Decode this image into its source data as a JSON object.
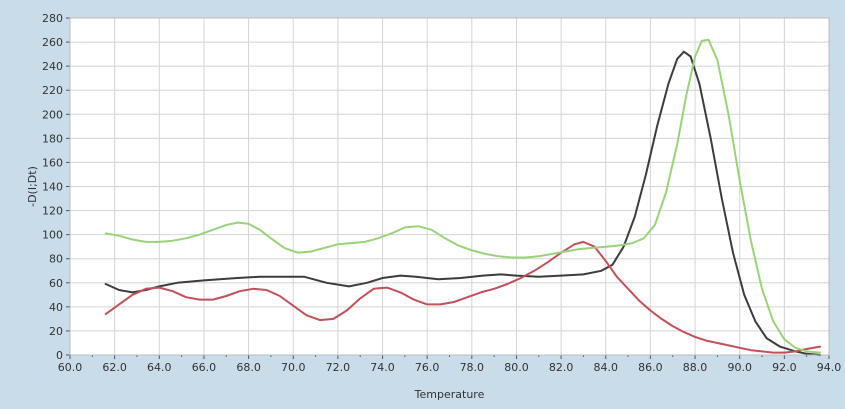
{
  "chart_data": {
    "type": "line",
    "xlabel": "Temperature",
    "ylabel": "-D(I;Dt)",
    "xlim": [
      60.0,
      94.0
    ],
    "ylim": [
      0,
      280
    ],
    "x_ticks": [
      "60.0",
      "62.0",
      "64.0",
      "66.0",
      "68.0",
      "70.0",
      "72.0",
      "74.0",
      "76.0",
      "78.0",
      "80.0",
      "82.0",
      "84.0",
      "86.0",
      "88.0",
      "90.0",
      "92.0",
      "94.0"
    ],
    "y_ticks": [
      "0",
      "20",
      "40",
      "60",
      "80",
      "100",
      "120",
      "140",
      "160",
      "180",
      "200",
      "220",
      "240",
      "260",
      "280"
    ],
    "grid": true,
    "colors": {
      "background": "#c9dcea",
      "plot_area": "#ffffff",
      "grid": "#d4d4d4",
      "axis": "#555555"
    },
    "series": [
      {
        "color": "#3c3c3c",
        "points": [
          [
            61.6,
            59
          ],
          [
            62.2,
            54
          ],
          [
            62.8,
            52
          ],
          [
            63.4,
            54
          ],
          [
            64.0,
            57
          ],
          [
            64.8,
            60
          ],
          [
            66.0,
            62
          ],
          [
            67.5,
            64
          ],
          [
            68.5,
            65
          ],
          [
            69.5,
            65
          ],
          [
            70.5,
            65
          ],
          [
            71.5,
            60
          ],
          [
            72.5,
            57
          ],
          [
            73.3,
            60
          ],
          [
            74.0,
            64
          ],
          [
            74.8,
            66
          ],
          [
            75.5,
            65
          ],
          [
            76.5,
            63
          ],
          [
            77.5,
            64
          ],
          [
            78.5,
            66
          ],
          [
            79.3,
            67
          ],
          [
            80.0,
            66
          ],
          [
            81.0,
            65
          ],
          [
            82.0,
            66
          ],
          [
            83.0,
            67
          ],
          [
            83.8,
            70
          ],
          [
            84.3,
            75
          ],
          [
            84.8,
            90
          ],
          [
            85.3,
            115
          ],
          [
            85.8,
            150
          ],
          [
            86.3,
            190
          ],
          [
            86.8,
            225
          ],
          [
            87.2,
            246
          ],
          [
            87.5,
            252
          ],
          [
            87.8,
            248
          ],
          [
            88.2,
            225
          ],
          [
            88.7,
            180
          ],
          [
            89.2,
            130
          ],
          [
            89.7,
            85
          ],
          [
            90.2,
            50
          ],
          [
            90.7,
            28
          ],
          [
            91.2,
            14
          ],
          [
            91.8,
            7
          ],
          [
            92.5,
            3
          ],
          [
            93.0,
            1
          ],
          [
            93.6,
            0
          ]
        ]
      },
      {
        "color": "#c0505a",
        "points": [
          [
            61.6,
            34
          ],
          [
            62.2,
            42
          ],
          [
            62.8,
            50
          ],
          [
            63.4,
            55
          ],
          [
            64.0,
            56
          ],
          [
            64.6,
            53
          ],
          [
            65.2,
            48
          ],
          [
            65.8,
            46
          ],
          [
            66.4,
            46
          ],
          [
            67.0,
            49
          ],
          [
            67.6,
            53
          ],
          [
            68.2,
            55
          ],
          [
            68.8,
            54
          ],
          [
            69.4,
            49
          ],
          [
            70.0,
            41
          ],
          [
            70.6,
            33
          ],
          [
            71.2,
            29
          ],
          [
            71.8,
            30
          ],
          [
            72.4,
            37
          ],
          [
            73.0,
            47
          ],
          [
            73.6,
            55
          ],
          [
            74.2,
            56
          ],
          [
            74.8,
            52
          ],
          [
            75.4,
            46
          ],
          [
            76.0,
            42
          ],
          [
            76.6,
            42
          ],
          [
            77.2,
            44
          ],
          [
            77.8,
            48
          ],
          [
            78.4,
            52
          ],
          [
            79.0,
            55
          ],
          [
            79.6,
            59
          ],
          [
            80.2,
            64
          ],
          [
            80.8,
            70
          ],
          [
            81.4,
            77
          ],
          [
            82.0,
            85
          ],
          [
            82.6,
            92
          ],
          [
            83.0,
            94
          ],
          [
            83.5,
            90
          ],
          [
            84.0,
            78
          ],
          [
            84.5,
            65
          ],
          [
            85.0,
            55
          ],
          [
            85.5,
            45
          ],
          [
            86.0,
            37
          ],
          [
            86.5,
            30
          ],
          [
            87.0,
            24
          ],
          [
            87.5,
            19
          ],
          [
            88.0,
            15
          ],
          [
            88.5,
            12
          ],
          [
            89.0,
            10
          ],
          [
            89.5,
            8
          ],
          [
            90.0,
            6
          ],
          [
            90.5,
            4
          ],
          [
            91.0,
            3
          ],
          [
            91.5,
            2
          ],
          [
            92.0,
            2
          ],
          [
            92.5,
            3
          ],
          [
            93.0,
            5
          ],
          [
            93.6,
            7
          ]
        ]
      },
      {
        "color": "#9ad27a",
        "points": [
          [
            61.6,
            101
          ],
          [
            62.2,
            99
          ],
          [
            62.8,
            96
          ],
          [
            63.4,
            94
          ],
          [
            64.0,
            94
          ],
          [
            64.6,
            95
          ],
          [
            65.2,
            97
          ],
          [
            65.8,
            100
          ],
          [
            66.4,
            104
          ],
          [
            67.0,
            108
          ],
          [
            67.5,
            110
          ],
          [
            68.0,
            109
          ],
          [
            68.5,
            104
          ],
          [
            69.0,
            97
          ],
          [
            69.6,
            89
          ],
          [
            70.2,
            85
          ],
          [
            70.8,
            86
          ],
          [
            71.4,
            89
          ],
          [
            72.0,
            92
          ],
          [
            72.6,
            93
          ],
          [
            73.2,
            94
          ],
          [
            73.8,
            97
          ],
          [
            74.4,
            101
          ],
          [
            75.0,
            106
          ],
          [
            75.6,
            107
          ],
          [
            76.2,
            104
          ],
          [
            76.8,
            97
          ],
          [
            77.4,
            91
          ],
          [
            78.0,
            87
          ],
          [
            78.6,
            84
          ],
          [
            79.2,
            82
          ],
          [
            79.8,
            81
          ],
          [
            80.4,
            81
          ],
          [
            81.0,
            82
          ],
          [
            81.6,
            84
          ],
          [
            82.2,
            86
          ],
          [
            82.8,
            88
          ],
          [
            83.4,
            89
          ],
          [
            84.0,
            90
          ],
          [
            84.6,
            91
          ],
          [
            85.2,
            93
          ],
          [
            85.7,
            97
          ],
          [
            86.2,
            108
          ],
          [
            86.7,
            135
          ],
          [
            87.2,
            175
          ],
          [
            87.6,
            215
          ],
          [
            88.0,
            248
          ],
          [
            88.3,
            261
          ],
          [
            88.6,
            262
          ],
          [
            89.0,
            245
          ],
          [
            89.5,
            200
          ],
          [
            90.0,
            145
          ],
          [
            90.5,
            95
          ],
          [
            91.0,
            55
          ],
          [
            91.5,
            28
          ],
          [
            92.0,
            13
          ],
          [
            92.5,
            6
          ],
          [
            93.0,
            3
          ],
          [
            93.6,
            2
          ]
        ]
      }
    ]
  }
}
